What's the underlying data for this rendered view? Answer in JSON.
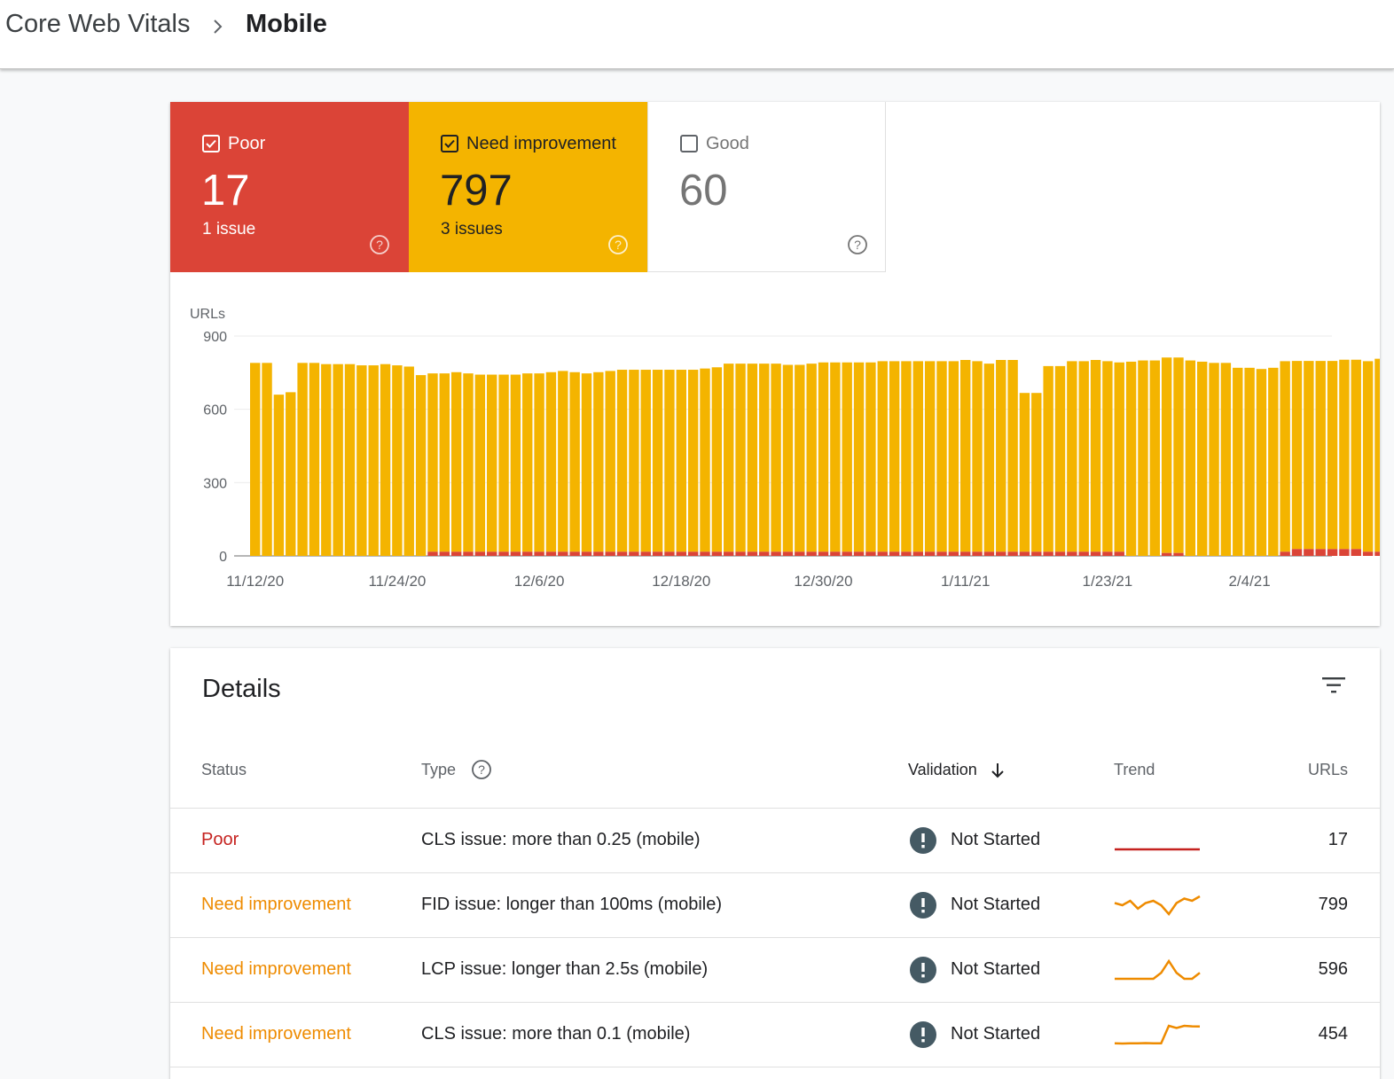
{
  "breadcrumb": {
    "root": "Core Web Vitals",
    "current": "Mobile"
  },
  "colors": {
    "poor": "#db4437",
    "need_improvement": "#f4b400",
    "good_border": "#e0e0e0",
    "trend_poor": "#c5221f",
    "trend_ni": "#ee8b00"
  },
  "summary": {
    "poor": {
      "label": "Poor",
      "count": "17",
      "issues": "1 issue",
      "checked": true
    },
    "need_improvement": {
      "label": "Need improvement",
      "count": "797",
      "issues": "3 issues",
      "checked": true
    },
    "good": {
      "label": "Good",
      "count": "60",
      "checked": false
    }
  },
  "chart_data": {
    "type": "bar",
    "stacked": true,
    "ylabel": "URLs",
    "ylim": [
      0,
      900
    ],
    "yticks": [
      0,
      300,
      600,
      900
    ],
    "xtick_labels": [
      "11/12/20",
      "11/24/20",
      "12/6/20",
      "12/18/20",
      "12/30/20",
      "1/11/21",
      "1/23/21",
      "2/4/21"
    ],
    "xtick_positions": [
      0,
      12,
      24,
      36,
      48,
      60,
      72,
      84
    ],
    "grid": true,
    "series": [
      {
        "key": "poor",
        "values": [
          0,
          0,
          0,
          0,
          0,
          0,
          0,
          0,
          0,
          0,
          0,
          0,
          0,
          0,
          0,
          17,
          17,
          17,
          17,
          17,
          17,
          17,
          17,
          17,
          17,
          17,
          17,
          17,
          17,
          17,
          17,
          17,
          17,
          17,
          17,
          17,
          17,
          17,
          17,
          17,
          17,
          17,
          17,
          17,
          17,
          17,
          17,
          17,
          17,
          17,
          17,
          17,
          17,
          17,
          17,
          17,
          17,
          17,
          17,
          17,
          17,
          17,
          17,
          17,
          17,
          17,
          17,
          17,
          17,
          17,
          17,
          17,
          17,
          17,
          0,
          0,
          0,
          12,
          12,
          0,
          0,
          0,
          0,
          0,
          0,
          0,
          0,
          17,
          28,
          28,
          28,
          28,
          28,
          28,
          17,
          17
        ]
      },
      {
        "key": "need_improvement",
        "values": [
          790,
          790,
          660,
          670,
          790,
          790,
          785,
          785,
          785,
          780,
          780,
          785,
          780,
          775,
          740,
          730,
          730,
          735,
          730,
          725,
          725,
          725,
          725,
          730,
          730,
          735,
          740,
          735,
          730,
          735,
          740,
          745,
          745,
          745,
          745,
          745,
          745,
          745,
          750,
          755,
          770,
          770,
          770,
          770,
          770,
          765,
          765,
          770,
          775,
          775,
          775,
          775,
          775,
          780,
          780,
          780,
          780,
          780,
          780,
          780,
          785,
          780,
          770,
          785,
          785,
          650,
          650,
          760,
          760,
          780,
          780,
          785,
          780,
          775,
          795,
          800,
          800,
          800,
          800,
          800,
          795,
          790,
          790,
          770,
          770,
          765,
          770,
          780,
          770,
          770,
          770,
          770,
          775,
          775,
          780,
          790,
          795,
          795
        ]
      }
    ]
  },
  "details": {
    "title": "Details",
    "headers": {
      "status": "Status",
      "type": "Type",
      "validation": "Validation",
      "trend": "Trend",
      "urls": "URLs"
    },
    "rows": [
      {
        "status": "Poor",
        "status_class": "poor",
        "type": "CLS issue: more than 0.25 (mobile)",
        "validation": "Not Started",
        "trend": [
          17,
          17,
          17,
          17,
          17,
          17,
          17,
          17,
          17,
          17,
          17,
          17
        ],
        "urls": "17"
      },
      {
        "status": "Need improvement",
        "status_class": "ni",
        "type": "FID issue: longer than 100ms (mobile)",
        "validation": "Not Started",
        "trend": [
          790,
          788,
          792,
          785,
          790,
          792,
          788,
          780,
          790,
          794,
          792,
          796
        ],
        "urls": "799"
      },
      {
        "status": "Need improvement",
        "status_class": "ni",
        "type": "LCP issue: longer than 2.5s (mobile)",
        "validation": "Not Started",
        "trend": [
          590,
          590,
          590,
          590,
          590,
          590,
          592,
          596,
          592,
          590,
          590,
          592
        ],
        "urls": "596"
      },
      {
        "status": "Need improvement",
        "status_class": "ni",
        "type": "CLS issue: more than 0.1 (mobile)",
        "validation": "Not Started",
        "trend": [
          300,
          298,
          300,
          300,
          302,
          300,
          300,
          460,
          440,
          460,
          455,
          454
        ],
        "urls": "454"
      }
    ]
  }
}
